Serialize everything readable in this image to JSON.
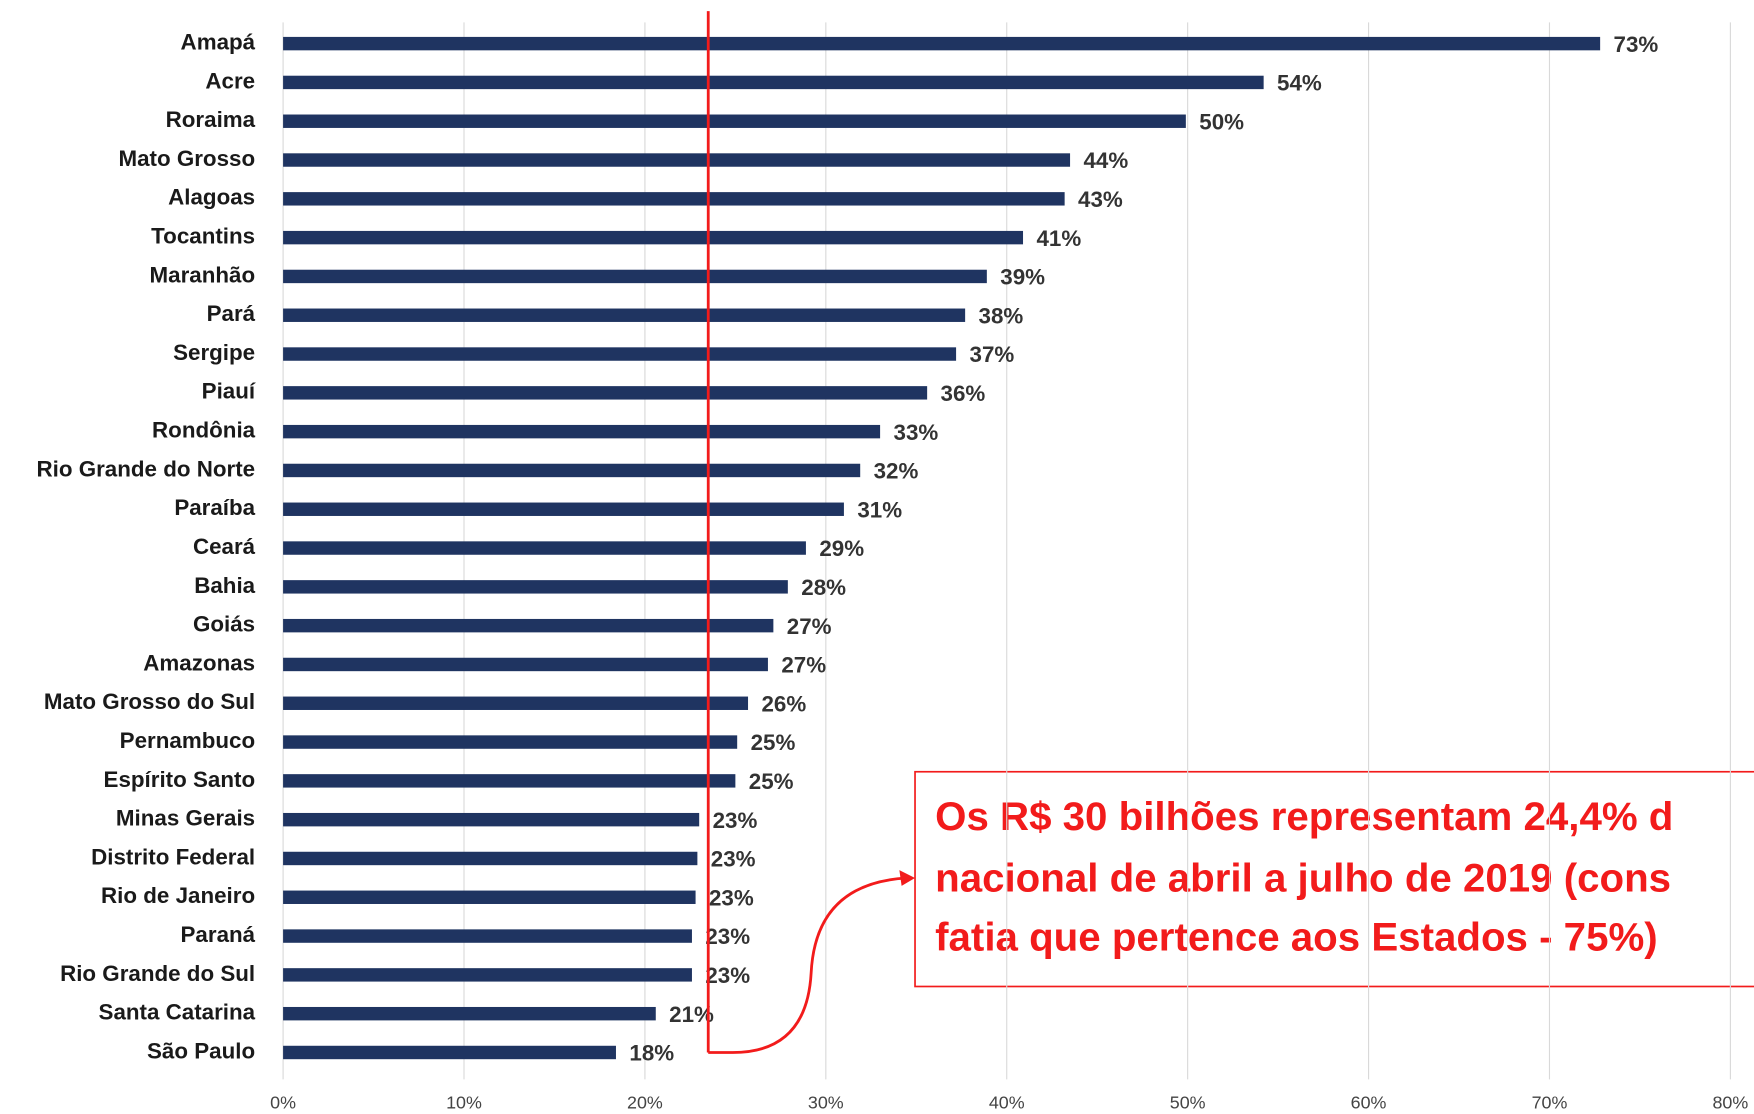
{
  "chart_data": {
    "type": "bar",
    "orientation": "horizontal",
    "categories": [
      "Amapá",
      "Acre",
      "Roraima",
      "Mato Grosso",
      "Alagoas",
      "Tocantins",
      "Maranhão",
      "Pará",
      "Sergipe",
      "Piauí",
      "Rondônia",
      "Rio Grande do Norte",
      "Paraíba",
      "Ceará",
      "Bahia",
      "Goiás",
      "Amazonas",
      "Mato Grosso do Sul",
      "Pernambuco",
      "Espírito Santo",
      "Minas Gerais",
      "Distrito Federal",
      "Rio de Janeiro",
      "Paraná",
      "Rio Grande do Sul",
      "Santa Catarina",
      "São Paulo"
    ],
    "values": [
      72.8,
      54.2,
      49.9,
      43.5,
      43.2,
      40.9,
      38.9,
      37.7,
      37.2,
      35.6,
      33.0,
      31.9,
      31.0,
      28.9,
      27.9,
      27.1,
      26.8,
      25.7,
      25.1,
      25.0,
      23.0,
      22.9,
      22.8,
      22.6,
      22.6,
      20.6,
      18.4
    ],
    "value_labels": [
      "73%",
      "54%",
      "50%",
      "44%",
      "43%",
      "41%",
      "39%",
      "38%",
      "37%",
      "36%",
      "33%",
      "32%",
      "31%",
      "29%",
      "28%",
      "27%",
      "27%",
      "26%",
      "25%",
      "25%",
      "23%",
      "23%",
      "23%",
      "23%",
      "23%",
      "21%",
      "18%"
    ],
    "color": "#1f3461",
    "xlim": [
      0,
      80
    ],
    "xticks": [
      {
        "value": 0,
        "label": "0%"
      },
      {
        "value": 10,
        "label": "10%"
      },
      {
        "value": 20,
        "label": "20%"
      },
      {
        "value": 30,
        "label": "30%"
      },
      {
        "value": 40,
        "label": "40%"
      },
      {
        "value": 50,
        "label": "50%"
      },
      {
        "value": 60,
        "label": "60%"
      },
      {
        "value": 70,
        "label": "70%"
      },
      {
        "value": 80,
        "label": "80%"
      }
    ],
    "grid": true,
    "reference_line": {
      "value": 23.5,
      "color": "#f21b1b"
    },
    "annotation": [
      "Os R$ 30 bilhões representam 24,4% d",
      "nacional de abril a julho de 2019 (cons",
      "fatia que pertence aos Estados - 75%)"
    ]
  }
}
